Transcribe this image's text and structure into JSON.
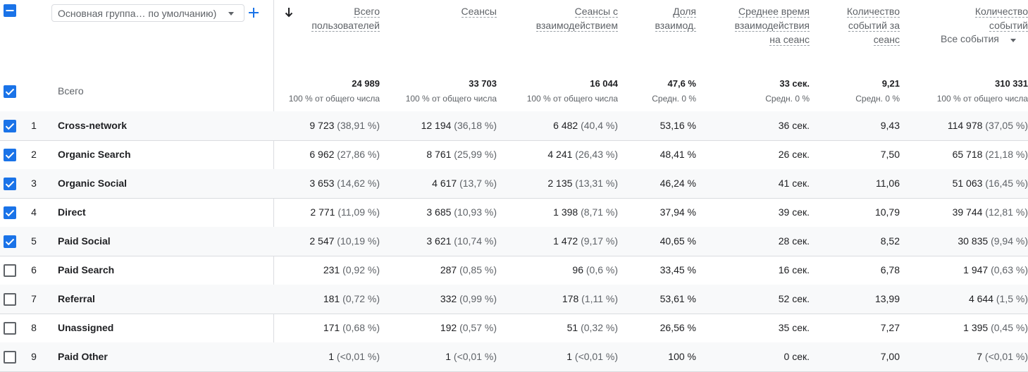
{
  "header": {
    "dimension_select": "Основная группа… по умолчанию)",
    "event_filter": "Все события",
    "columns": [
      {
        "key": "users",
        "label_lines": [
          "Всего",
          "пользователей"
        ]
      },
      {
        "key": "sessions",
        "label_lines": [
          "Сеансы"
        ]
      },
      {
        "key": "engaged",
        "label_lines": [
          "Сеансы с",
          "взаимодействием"
        ]
      },
      {
        "key": "rate",
        "label_lines": [
          "Доля",
          "взаимод."
        ]
      },
      {
        "key": "avgtime",
        "label_lines": [
          "Среднее время",
          "взаимодействия",
          "на сеанс"
        ]
      },
      {
        "key": "evpersess",
        "label_lines": [
          "Количество",
          "событий за",
          "сеанс"
        ]
      },
      {
        "key": "events",
        "label_lines": [
          "Количество",
          "событий"
        ]
      }
    ]
  },
  "totals": {
    "label": "Всего",
    "values": [
      {
        "main": "24 989",
        "sub": "100 % от общего числа"
      },
      {
        "main": "33 703",
        "sub": "100 % от общего числа"
      },
      {
        "main": "16 044",
        "sub": "100 % от общего числа"
      },
      {
        "main": "47,6 %",
        "sub": "Средн. 0 %"
      },
      {
        "main": "33 сек.",
        "sub": "Средн. 0 %"
      },
      {
        "main": "9,21",
        "sub": "Средн. 0 %"
      },
      {
        "main": "310 331",
        "sub": "100 % от общего числа"
      }
    ]
  },
  "rows": [
    {
      "index": "1",
      "channel": "Cross-network",
      "checked": true,
      "cells": [
        [
          "9 723",
          "(38,91 %)"
        ],
        [
          "12 194",
          "(36,18 %)"
        ],
        [
          "6 482",
          "(40,4 %)"
        ],
        [
          "53,16 %",
          ""
        ],
        [
          "36 сек.",
          ""
        ],
        [
          "9,43",
          ""
        ],
        [
          "114 978",
          "(37,05 %)"
        ]
      ]
    },
    {
      "index": "2",
      "channel": "Organic Search",
      "checked": true,
      "cells": [
        [
          "6 962",
          "(27,86 %)"
        ],
        [
          "8 761",
          "(25,99 %)"
        ],
        [
          "4 241",
          "(26,43 %)"
        ],
        [
          "48,41 %",
          ""
        ],
        [
          "26 сек.",
          ""
        ],
        [
          "7,50",
          ""
        ],
        [
          "65 718",
          "(21,18 %)"
        ]
      ]
    },
    {
      "index": "3",
      "channel": "Organic Social",
      "checked": true,
      "cells": [
        [
          "3 653",
          "(14,62 %)"
        ],
        [
          "4 617",
          "(13,7 %)"
        ],
        [
          "2 135",
          "(13,31 %)"
        ],
        [
          "46,24 %",
          ""
        ],
        [
          "41 сек.",
          ""
        ],
        [
          "11,06",
          ""
        ],
        [
          "51 063",
          "(16,45 %)"
        ]
      ]
    },
    {
      "index": "4",
      "channel": "Direct",
      "checked": true,
      "cells": [
        [
          "2 771",
          "(11,09 %)"
        ],
        [
          "3 685",
          "(10,93 %)"
        ],
        [
          "1 398",
          "(8,71 %)"
        ],
        [
          "37,94 %",
          ""
        ],
        [
          "39 сек.",
          ""
        ],
        [
          "10,79",
          ""
        ],
        [
          "39 744",
          "(12,81 %)"
        ]
      ]
    },
    {
      "index": "5",
      "channel": "Paid Social",
      "checked": true,
      "cells": [
        [
          "2 547",
          "(10,19 %)"
        ],
        [
          "3 621",
          "(10,74 %)"
        ],
        [
          "1 472",
          "(9,17 %)"
        ],
        [
          "40,65 %",
          ""
        ],
        [
          "28 сек.",
          ""
        ],
        [
          "8,52",
          ""
        ],
        [
          "30 835",
          "(9,94 %)"
        ]
      ]
    },
    {
      "index": "6",
      "channel": "Paid Search",
      "checked": false,
      "cells": [
        [
          "231",
          "(0,92 %)"
        ],
        [
          "287",
          "(0,85 %)"
        ],
        [
          "96",
          "(0,6 %)"
        ],
        [
          "33,45 %",
          ""
        ],
        [
          "16 сек.",
          ""
        ],
        [
          "6,78",
          ""
        ],
        [
          "1 947",
          "(0,63 %)"
        ]
      ]
    },
    {
      "index": "7",
      "channel": "Referral",
      "checked": false,
      "cells": [
        [
          "181",
          "(0,72 %)"
        ],
        [
          "332",
          "(0,99 %)"
        ],
        [
          "178",
          "(1,11 %)"
        ],
        [
          "53,61 %",
          ""
        ],
        [
          "52 сек.",
          ""
        ],
        [
          "13,99",
          ""
        ],
        [
          "4 644",
          "(1,5 %)"
        ]
      ]
    },
    {
      "index": "8",
      "channel": "Unassigned",
      "checked": false,
      "cells": [
        [
          "171",
          "(0,68 %)"
        ],
        [
          "192",
          "(0,57 %)"
        ],
        [
          "51",
          "(0,32 %)"
        ],
        [
          "26,56 %",
          ""
        ],
        [
          "35 сек.",
          ""
        ],
        [
          "7,27",
          ""
        ],
        [
          "1 395",
          "(0,45 %)"
        ]
      ]
    },
    {
      "index": "9",
      "channel": "Paid Other",
      "checked": false,
      "cells": [
        [
          "1",
          "(<0,01 %)"
        ],
        [
          "1",
          "(<0,01 %)"
        ],
        [
          "1",
          "(<0,01 %)"
        ],
        [
          "100 %",
          ""
        ],
        [
          "0 сек.",
          ""
        ],
        [
          "7,00",
          ""
        ],
        [
          "7",
          "(<0,01 %)"
        ]
      ]
    }
  ],
  "colors": {
    "accent": "#1a73e8",
    "row_shade": "#f8f9fa",
    "border": "#dadce0",
    "muted_text": "#5f6368"
  }
}
